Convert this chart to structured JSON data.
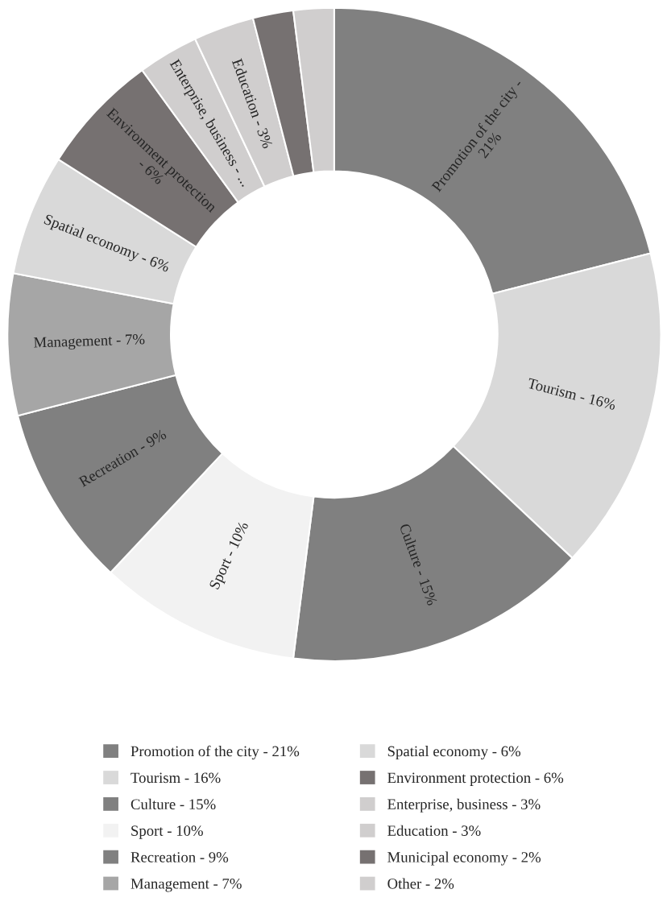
{
  "chart_data": {
    "type": "donut",
    "categories": [
      "Promotion of the city - 21%",
      "Tourism - 16%",
      "Culture - 15%",
      "Sport - 10%",
      "Recreation - 9%",
      "Management - 7%",
      "Spatial economy - 6%",
      "Environment protection - 6%",
      "Enterprise, business - 3%",
      "Education - 3%",
      "Municipal economy - 2%",
      "Other - 2%"
    ],
    "values": [
      21,
      16,
      15,
      10,
      9,
      7,
      6,
      6,
      3,
      3,
      2,
      2
    ],
    "annotations": [
      {
        "text": "Promotion of the city -\n21%",
        "x": "Promotion of the city - 21%"
      },
      {
        "text": "Tourism - 16%",
        "x": "Tourism - 16%"
      },
      {
        "text": "Culture - 15%",
        "x": "Culture - 15%"
      },
      {
        "text": "Sport - 10%",
        "x": "Sport - 10%"
      },
      {
        "text": "Recreation - 9%",
        "x": "Recreation - 9%"
      },
      {
        "text": "Management - 7%",
        "x": "Management - 7%"
      },
      {
        "text": "Spatial economy - 6%",
        "x": "Spatial economy - 6%"
      },
      {
        "text": "Environment protection\n- 6%",
        "x": "Environment protection - 6%"
      },
      {
        "text": "Enterprise, business - ...",
        "x": "Enterprise, business - 3%"
      },
      {
        "text": "Education - 3%",
        "x": "Education - 3%"
      }
    ],
    "colors": [
      "#808080",
      "#d9d9d9",
      "#808080",
      "#f2f2f2",
      "#808080",
      "#a6a6a6",
      "#d9d9d9",
      "#767171",
      "#d0cece",
      "#d0cece",
      "#767171",
      "#d0cece"
    ],
    "legend": "bottom"
  }
}
